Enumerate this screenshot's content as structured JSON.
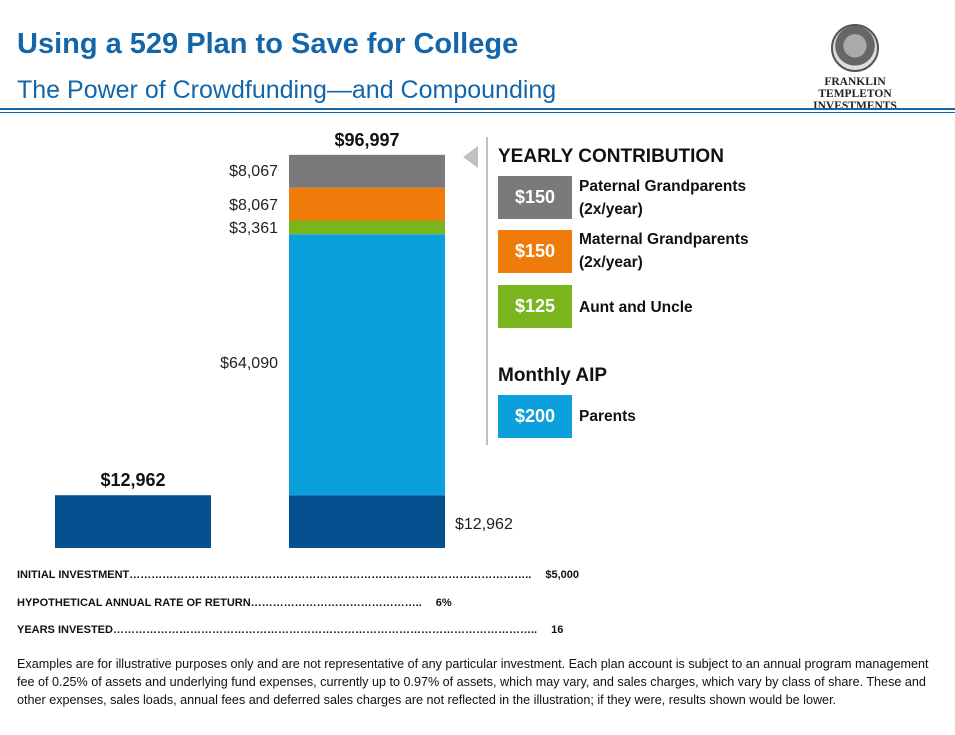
{
  "header": {
    "title": "Using a 529 Plan to Save for College",
    "subtitle": "The Power of Crowdfunding—and Compounding",
    "logo_text": [
      "FRANKLIN TEMPLETON",
      "INVESTMENTS"
    ]
  },
  "chart_data": {
    "type": "bar",
    "stacked": true,
    "categories": [
      "",
      ""
    ],
    "totals": [
      "$12,962",
      "$96,997"
    ],
    "series": [
      {
        "values": [
          12962,
          12962
        ],
        "label": "$12,962",
        "color": "#05508f"
      },
      {
        "values": [
          0,
          64090
        ],
        "label": "$64,090",
        "color": "#0b9fdc"
      },
      {
        "values": [
          0,
          3361
        ],
        "label": "$3,361",
        "color": "#7ab51d"
      },
      {
        "values": [
          0,
          8067
        ],
        "label": "$8,067",
        "color": "#ef7b0b"
      },
      {
        "values": [
          0,
          8067
        ],
        "label": "$8,067",
        "color": "#7a7a7a"
      }
    ],
    "ylim": [
      0,
      96997
    ],
    "grid": false
  },
  "legend": {
    "yearly_title": "YEARLY CONTRIBUTION",
    "monthly_title": "Monthly AIP",
    "items": [
      {
        "amount": "$150",
        "line1": "Paternal Grandparents",
        "line2": "(2x/year)",
        "color": "#7a7a7a"
      },
      {
        "amount": "$150",
        "line1": "Maternal Grandparents",
        "line2": "(2x/year)",
        "color": "#ef7b0b"
      },
      {
        "amount": "$125",
        "line1": "Aunt and Uncle",
        "line2": "",
        "color": "#7ab51d"
      },
      {
        "amount": "$200",
        "line1": "Parents",
        "line2": "",
        "color": "#0b9fdc"
      }
    ]
  },
  "facts": [
    {
      "label": "INITIAL  INVESTMENT………………………………………………………………………………………………..",
      "value": "$5,000"
    },
    {
      "label": "HYPOTHETICAL  ANNUAL RATE OF RETURN………………………………………..",
      "value": "6%"
    },
    {
      "label": "YEARS INVESTED……………………………………………………………………………………………………..",
      "value": "16"
    }
  ],
  "disclaimer": "Examples are for illustrative purposes only and are not representative of any particular investment. Each plan account is subject to an annual program management fee of 0.25% of assets and underlying fund expenses, currently up to 0.97% of assets, which may vary, and sales charges, which vary by class of share. These and other expenses, sales loads, annual fees and deferred sales charges are not reflected in the illustration; if they were, results shown would be lower."
}
